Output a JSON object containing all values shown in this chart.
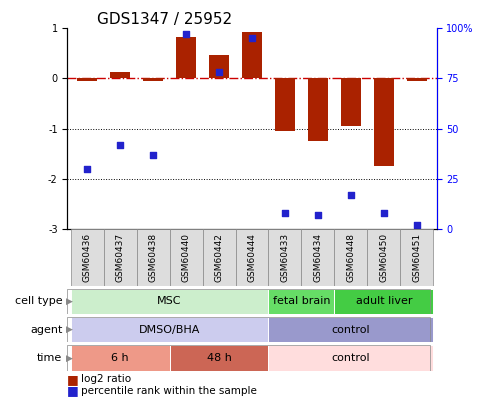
{
  "title": "GDS1347 / 25952",
  "samples": [
    "GSM60436",
    "GSM60437",
    "GSM60438",
    "GSM60440",
    "GSM60442",
    "GSM60444",
    "GSM60433",
    "GSM60434",
    "GSM60448",
    "GSM60450",
    "GSM60451"
  ],
  "log2_ratio": [
    -0.05,
    0.12,
    -0.06,
    0.82,
    0.47,
    0.93,
    -1.05,
    -1.25,
    -0.95,
    -1.75,
    -0.05
  ],
  "percentile_rank": [
    30,
    42,
    37,
    97,
    78,
    95,
    8,
    7,
    17,
    8,
    2
  ],
  "ylim_left": [
    -3,
    1
  ],
  "ylim_right": [
    0,
    100
  ],
  "yticks_left": [
    -3,
    -2,
    -1,
    0,
    1
  ],
  "yticks_right": [
    0,
    25,
    50,
    75,
    100
  ],
  "yticklabels_right": [
    "0",
    "25",
    "50",
    "75",
    "100%"
  ],
  "bar_color": "#aa2200",
  "dot_color": "#2222cc",
  "hline_color": "#cc0000",
  "dotted_lines": [
    -1,
    -2
  ],
  "cell_type_groups": [
    {
      "label": "MSC",
      "start": 0,
      "end": 6,
      "color": "#cceecc"
    },
    {
      "label": "fetal brain",
      "start": 6,
      "end": 8,
      "color": "#66dd66"
    },
    {
      "label": "adult liver",
      "start": 8,
      "end": 11,
      "color": "#44cc44"
    }
  ],
  "agent_groups": [
    {
      "label": "DMSO/BHA",
      "start": 0,
      "end": 6,
      "color": "#ccccee"
    },
    {
      "label": "control",
      "start": 6,
      "end": 11,
      "color": "#9999cc"
    }
  ],
  "time_groups": [
    {
      "label": "6 h",
      "start": 0,
      "end": 3,
      "color": "#ee9988"
    },
    {
      "label": "48 h",
      "start": 3,
      "end": 6,
      "color": "#cc6655"
    },
    {
      "label": "control",
      "start": 6,
      "end": 11,
      "color": "#ffdddd"
    }
  ],
  "row_labels": [
    "cell type",
    "agent",
    "time"
  ],
  "legend": [
    {
      "color": "#aa2200",
      "label": "log2 ratio"
    },
    {
      "color": "#2222cc",
      "label": "percentile rank within the sample"
    }
  ],
  "sample_box_color": "#dddddd",
  "sample_box_edge": "#888888",
  "tick_fontsize": 7,
  "sample_fontsize": 6.5,
  "label_fontsize": 8,
  "title_fontsize": 11
}
